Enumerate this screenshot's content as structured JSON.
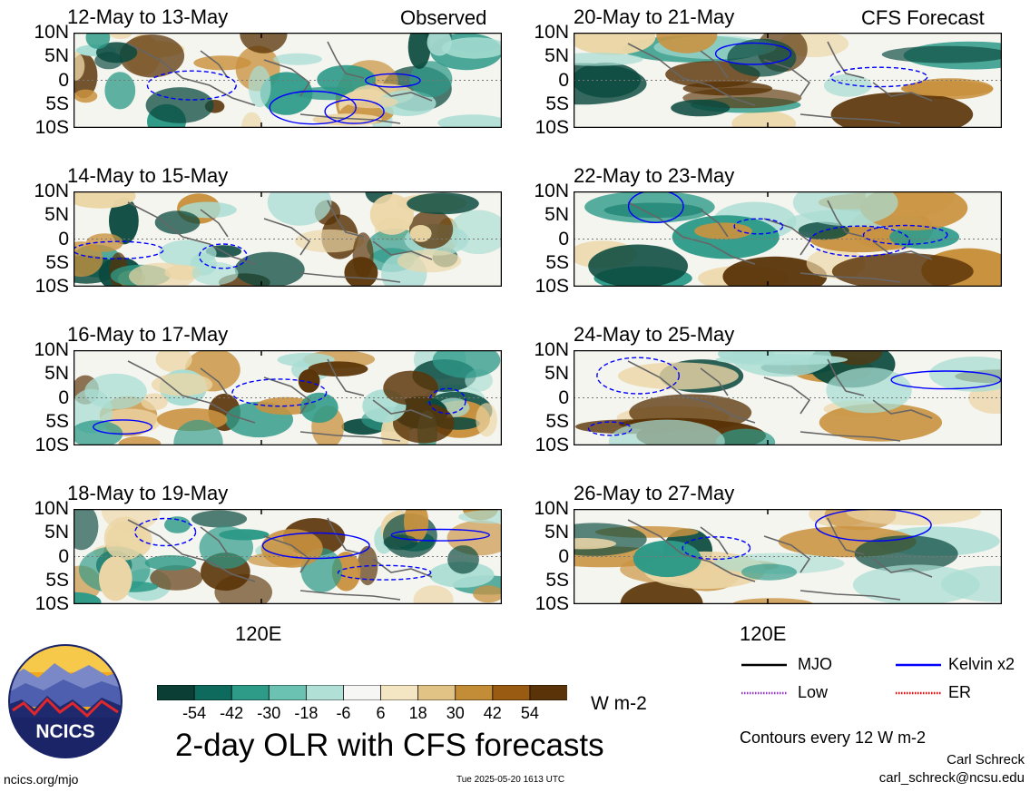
{
  "colors": {
    "wet_dark": "#0b4a3f",
    "wet_mid": "#2e9a88",
    "wet_light": "#a9ddd3",
    "neutral": "#f5f5f0",
    "dry_light": "#ecd6a6",
    "dry_mid": "#c9923f",
    "dry_dark": "#5a3408",
    "kelvin": "#0000ff",
    "coast": "#666666"
  },
  "labels": {
    "left_header": "Observed",
    "right_header": "CFS Forecast",
    "x_tick": "120E",
    "lat_ticks": [
      "10N",
      "5N",
      "0",
      "5S",
      "10S"
    ],
    "units": "W m-2",
    "main_title": "2-day OLR with CFS forecasts",
    "contour_note": "Contours every 12 W m-2",
    "author": "Carl Schreck",
    "email": "carl_schreck@ncsu.edu",
    "website": "ncics.org/mjo",
    "timestamp": "Tue 2025-05-20 1613 UTC",
    "logo_text": "NCICS"
  },
  "legend": {
    "items": [
      {
        "label": "MJO",
        "color": "#000000",
        "style": "solid"
      },
      {
        "label": "Kelvin x2",
        "color": "#0000ff",
        "style": "solid"
      },
      {
        "label": "Low",
        "color": "#9933cc",
        "style": "dotted"
      },
      {
        "label": "ER",
        "color": "#ff0000",
        "style": "dotted"
      }
    ]
  },
  "colorbar": {
    "colors": [
      "#0b3f36",
      "#0e6a5d",
      "#2e9a88",
      "#6cc2b2",
      "#b1e0d6",
      "#f6f6f4",
      "#f4e6c2",
      "#e2c386",
      "#c38d38",
      "#995a12",
      "#5a3408"
    ],
    "ticks": [
      "-54",
      "-42",
      "-30",
      "-18",
      "-6",
      "6",
      "18",
      "30",
      "42",
      "54"
    ]
  },
  "chart_data": {
    "type": "heatmap",
    "title": "2-day OLR with CFS forecasts",
    "units": "W m-2",
    "panels": [
      {
        "period": "12-May to 13-May",
        "type": "Observed"
      },
      {
        "period": "14-May to 15-May",
        "type": "Observed"
      },
      {
        "period": "16-May to 17-May",
        "type": "Observed"
      },
      {
        "period": "18-May to 19-May",
        "type": "Observed"
      },
      {
        "period": "20-May to 21-May",
        "type": "CFS Forecast"
      },
      {
        "period": "22-May to 23-May",
        "type": "CFS Forecast"
      },
      {
        "period": "24-May to 25-May",
        "type": "CFS Forecast"
      },
      {
        "period": "26-May to 27-May",
        "type": "CFS Forecast"
      }
    ],
    "y_ticks": [
      "10N",
      "5N",
      "0",
      "5S",
      "10S"
    ],
    "x_ticks": [
      "120E"
    ]
  }
}
